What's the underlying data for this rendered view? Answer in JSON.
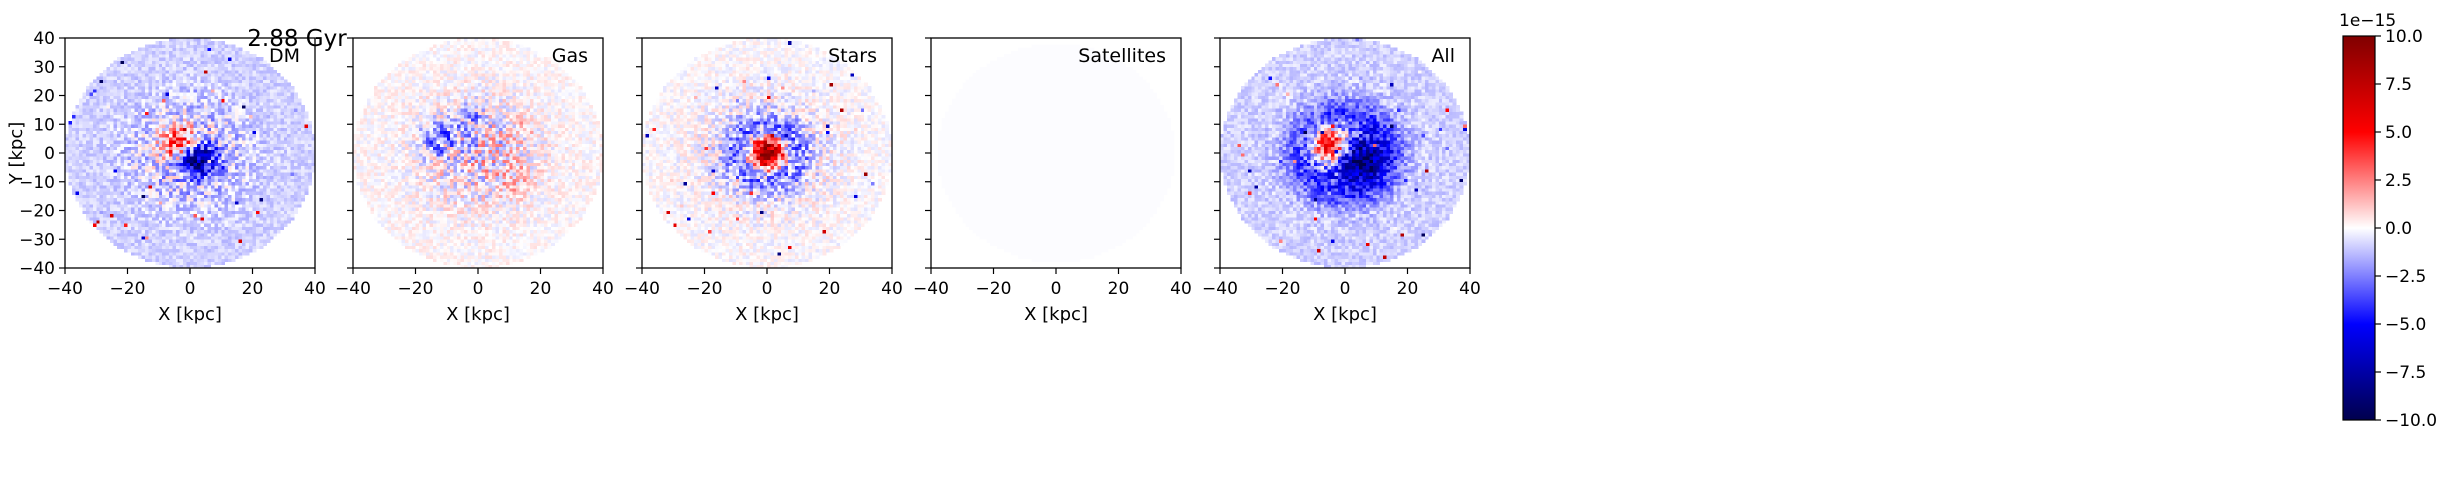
{
  "figure": {
    "title": "2.88 Gyr",
    "colormap": "seismic",
    "colorbar": {
      "offset_label": "1e−15",
      "ticks": [
        10.0,
        7.5,
        5.0,
        2.5,
        0.0,
        -2.5,
        -5.0,
        -7.5,
        -10.0
      ],
      "tick_labels": [
        "10.0",
        "7.5",
        "5.0",
        "2.5",
        "0.0",
        "−2.5",
        "−5.0",
        "−7.5",
        "−10.0"
      ],
      "vmin": -10.0,
      "vmax": 10.0,
      "colors": {
        "low": "#00004c",
        "mid": "#ffffff",
        "high": "#800000"
      }
    }
  },
  "chart_data": [
    {
      "type": "heatmap",
      "panel_label": "DM",
      "xlabel": "X [kpc]",
      "ylabel": "Y [kpc]",
      "xlim": [
        -40,
        40
      ],
      "ylim": [
        -40,
        40
      ],
      "xticks": [
        -40,
        -20,
        0,
        20,
        40
      ],
      "yticks": [
        40,
        30,
        20,
        10,
        0,
        -10,
        -20,
        -30,
        -40
      ],
      "tick_labels_x": [
        "−40",
        "−20",
        "0",
        "20",
        "40"
      ],
      "tick_labels_y": [
        "40",
        "30",
        "20",
        "10",
        "0",
        "−10",
        "−20",
        "−30",
        "−40"
      ],
      "data_radius_kpc": 40,
      "background_value": -1.0,
      "features": [
        {
          "kind": "positive_core",
          "x": -3,
          "y": 3,
          "radius": 6,
          "amplitude": 6.0
        },
        {
          "kind": "negative_core",
          "x": 2,
          "y": -2,
          "radius": 6,
          "amplitude": -8.0
        }
      ]
    },
    {
      "type": "heatmap",
      "panel_label": "Gas",
      "xlabel": "X [kpc]",
      "ylabel": "",
      "xlim": [
        -40,
        40
      ],
      "ylim": [
        -40,
        40
      ],
      "xticks": [
        -40,
        -20,
        0,
        20,
        40
      ],
      "yticks": [
        40,
        30,
        20,
        10,
        0,
        -10,
        -20,
        -30,
        -40
      ],
      "tick_labels_x": [
        "−40",
        "−20",
        "0",
        "20",
        "40"
      ],
      "tick_labels_y": [],
      "data_radius_kpc": 40,
      "background_value": 0.1,
      "features": [
        {
          "kind": "negative_arc",
          "x": -12,
          "y": 5,
          "radius": 6,
          "amplitude": -4.5
        },
        {
          "kind": "negative_arc",
          "x": -2,
          "y": 12,
          "radius": 5,
          "amplitude": -3.0
        },
        {
          "kind": "positive_arc",
          "x": 12,
          "y": -9,
          "radius": 6,
          "amplitude": 2.0
        },
        {
          "kind": "positive_arc",
          "x": 14,
          "y": 9,
          "radius": 4,
          "amplitude": 1.5
        }
      ]
    },
    {
      "type": "heatmap",
      "panel_label": "Stars",
      "xlabel": "X [kpc]",
      "ylabel": "",
      "xlim": [
        -40,
        40
      ],
      "ylim": [
        -40,
        40
      ],
      "xticks": [
        -40,
        -20,
        0,
        20,
        40
      ],
      "yticks": [
        40,
        30,
        20,
        10,
        0,
        -10,
        -20,
        -30,
        -40
      ],
      "tick_labels_x": [
        "−40",
        "−20",
        "0",
        "20",
        "40"
      ],
      "tick_labels_y": [],
      "data_radius_kpc": 40,
      "background_value": 0.0,
      "features": [
        {
          "kind": "positive_core",
          "x": 0,
          "y": 0,
          "radius": 5,
          "amplitude": 10.0
        },
        {
          "kind": "negative_ring",
          "x": 0,
          "y": 0,
          "radius": 10,
          "amplitude": -2.5
        }
      ]
    },
    {
      "type": "heatmap",
      "panel_label": "Satellites",
      "xlabel": "X [kpc]",
      "ylabel": "",
      "xlim": [
        -40,
        40
      ],
      "ylim": [
        -40,
        40
      ],
      "xticks": [
        -40,
        -20,
        0,
        20,
        40
      ],
      "yticks": [
        40,
        30,
        20,
        10,
        0,
        -10,
        -20,
        -30,
        -40
      ],
      "tick_labels_x": [
        "−40",
        "−20",
        "0",
        "20",
        "40"
      ],
      "tick_labels_y": [],
      "data_radius_kpc": 38,
      "background_value": -0.05,
      "features": []
    },
    {
      "type": "heatmap",
      "panel_label": "All",
      "xlabel": "X [kpc]",
      "ylabel": "",
      "xlim": [
        -40,
        40
      ],
      "ylim": [
        -40,
        40
      ],
      "xticks": [
        -40,
        -20,
        0,
        20,
        40
      ],
      "yticks": [
        40,
        30,
        20,
        10,
        0,
        -10,
        -20,
        -30,
        -40
      ],
      "tick_labels_x": [
        "−40",
        "−20",
        "0",
        "20",
        "40"
      ],
      "tick_labels_y": [],
      "data_radius_kpc": 40,
      "background_value": -1.0,
      "features": [
        {
          "kind": "positive_core",
          "x": -5,
          "y": 3,
          "radius": 6,
          "amplitude": 8.0
        },
        {
          "kind": "negative_core",
          "x": 4,
          "y": -2,
          "radius": 7,
          "amplitude": -8.0
        },
        {
          "kind": "negative_ring",
          "x": 0,
          "y": 0,
          "radius": 13,
          "amplitude": -3.0
        }
      ]
    }
  ]
}
